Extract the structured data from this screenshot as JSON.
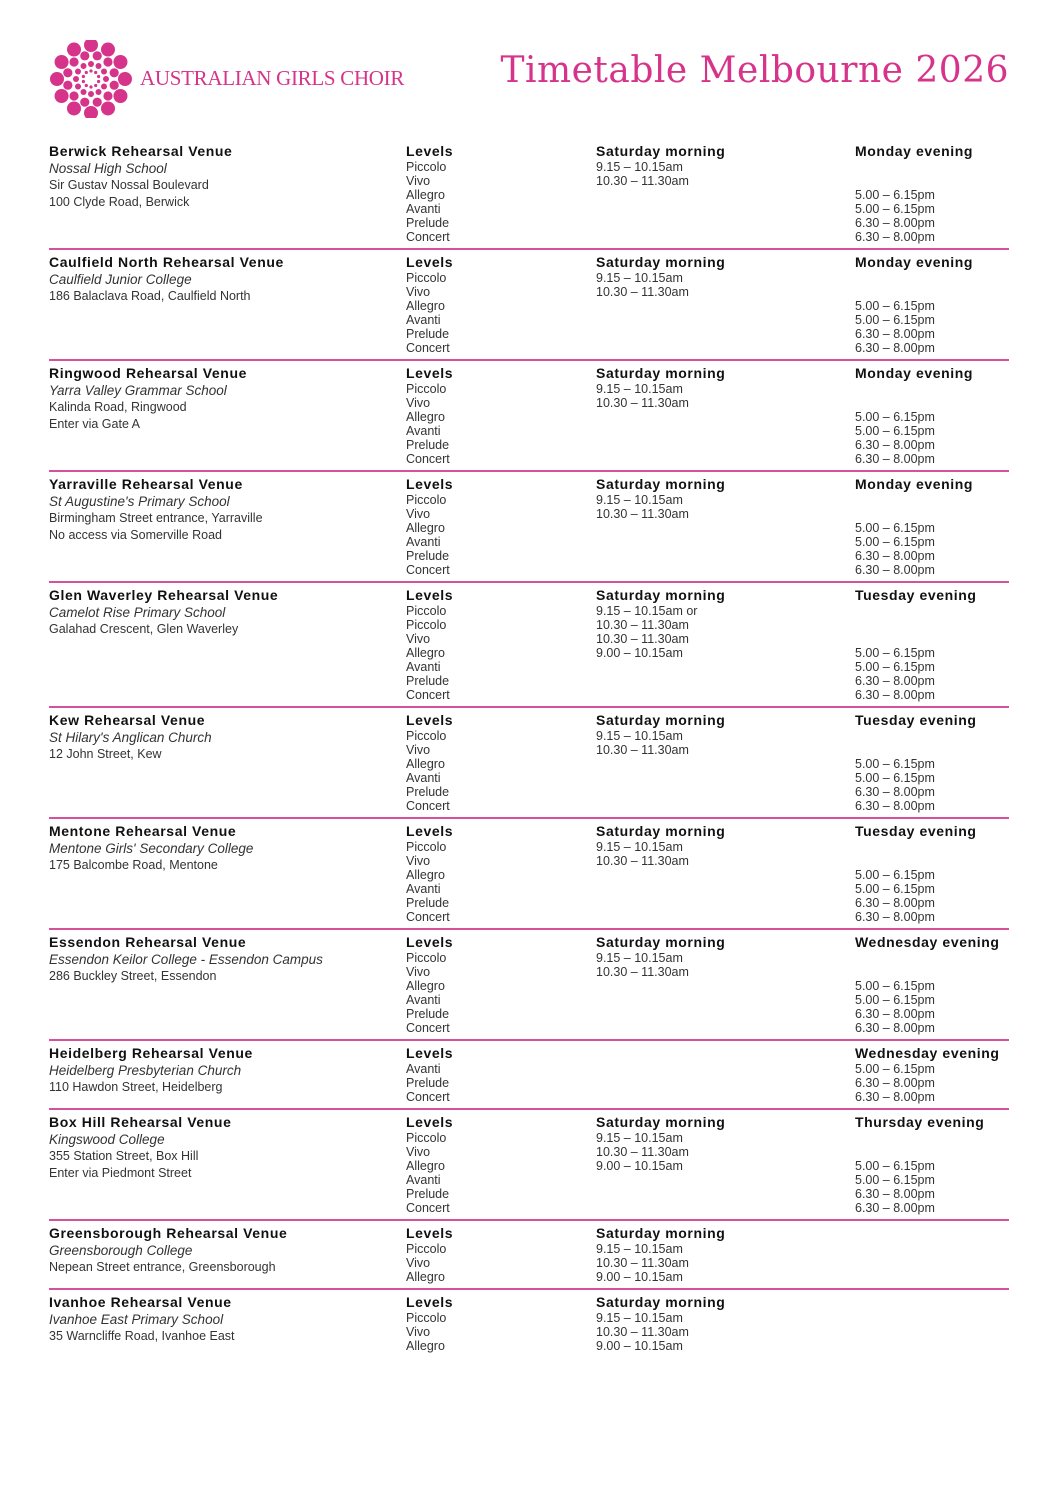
{
  "header": {
    "logo_text": "AUSTRALIAN GIRLS CHOIR",
    "title": "Timetable Melbourne 2026",
    "accent": "#d6338a"
  },
  "venues": [
    {
      "name": "Berwick Rehearsal Venue",
      "school": "Nossal High School",
      "address": [
        "Sir Gustav Nossal Boulevard",
        "100 Clyde Road, Berwick"
      ],
      "levels_label": "Levels",
      "levels": [
        "Piccolo",
        "Vivo",
        "Allegro",
        "Avanti",
        "Prelude",
        "Concert"
      ],
      "saturday_label": "Saturday morning",
      "saturday_times": [
        "9.15 – 10.15am",
        "10.30 – 11.30am"
      ],
      "evening_label": "Monday evening",
      "evening_times": [
        "5.00 – 6.15pm",
        "5.00 – 6.15pm",
        "6.30 – 8.00pm",
        "6.30 – 8.00pm"
      ]
    },
    {
      "name": "Caulfield North Rehearsal Venue",
      "school": "Caulfield Junior College",
      "address": [
        "186 Balaclava Road, Caulfield North"
      ],
      "levels_label": "Levels",
      "levels": [
        "Piccolo",
        "Vivo",
        "Allegro",
        "Avanti",
        "Prelude",
        "Concert"
      ],
      "saturday_label": "Saturday morning",
      "saturday_times": [
        "9.15 – 10.15am",
        "10.30 – 11.30am"
      ],
      "evening_label": "Monday evening",
      "evening_times": [
        "5.00 – 6.15pm",
        "5.00 – 6.15pm",
        "6.30 – 8.00pm",
        "6.30 – 8.00pm"
      ]
    },
    {
      "name": "Ringwood Rehearsal Venue",
      "school": "Yarra Valley Grammar School",
      "address": [
        "Kalinda Road, Ringwood",
        "Enter via Gate A"
      ],
      "levels_label": "Levels",
      "levels": [
        "Piccolo",
        "Vivo",
        "Allegro",
        "Avanti",
        "Prelude",
        "Concert"
      ],
      "saturday_label": "Saturday morning",
      "saturday_times": [
        "9.15 – 10.15am",
        "10.30 – 11.30am"
      ],
      "evening_label": "Monday evening",
      "evening_times": [
        "5.00 – 6.15pm",
        "5.00 – 6.15pm",
        "6.30 – 8.00pm",
        "6.30 – 8.00pm"
      ]
    },
    {
      "name": "Yarraville Rehearsal Venue",
      "school": "St Augustine's Primary School",
      "address": [
        "Birmingham Street entrance, Yarraville",
        "No access via Somerville Road"
      ],
      "levels_label": "Levels",
      "levels": [
        "Piccolo",
        "Vivo",
        "Allegro",
        "Avanti",
        "Prelude",
        "Concert"
      ],
      "saturday_label": "Saturday morning",
      "saturday_times": [
        "9.15 – 10.15am",
        "10.30 – 11.30am"
      ],
      "evening_label": "Monday evening",
      "evening_times": [
        "5.00 – 6.15pm",
        "5.00 – 6.15pm",
        "6.30 – 8.00pm",
        "6.30 – 8.00pm"
      ]
    },
    {
      "name": "Glen Waverley Rehearsal Venue",
      "school": "Camelot Rise Primary School",
      "address": [
        "Galahad Crescent, Glen Waverley"
      ],
      "levels_label": "Levels",
      "levels": [
        "Piccolo",
        "Piccolo",
        "Vivo",
        "Allegro",
        "Avanti",
        "Prelude",
        "Concert"
      ],
      "saturday_label": "Saturday morning",
      "saturday_times": [
        "9.15 – 10.15am or",
        "10.30 – 11.30am",
        "10.30 – 11.30am",
        "9.00 – 10.15am"
      ],
      "evening_label": "Tuesday evening",
      "evening_times": [
        "5.00 – 6.15pm",
        "5.00 – 6.15pm",
        "6.30 – 8.00pm",
        "6.30 – 8.00pm"
      ]
    },
    {
      "name": "Kew Rehearsal Venue",
      "school": "St Hilary's Anglican Church",
      "address": [
        "12 John Street, Kew"
      ],
      "levels_label": "Levels",
      "levels": [
        "Piccolo",
        "Vivo",
        "Allegro",
        "Avanti",
        "Prelude",
        "Concert"
      ],
      "saturday_label": "Saturday morning",
      "saturday_times": [
        "9.15 – 10.15am",
        "10.30 – 11.30am"
      ],
      "evening_label": "Tuesday evening",
      "evening_times": [
        "5.00 – 6.15pm",
        "5.00 – 6.15pm",
        "6.30 – 8.00pm",
        "6.30 – 8.00pm"
      ]
    },
    {
      "name": "Mentone Rehearsal Venue",
      "school": "Mentone Girls' Secondary College",
      "address": [
        "175 Balcombe Road, Mentone"
      ],
      "levels_label": "Levels",
      "levels": [
        "Piccolo",
        "Vivo",
        "Allegro",
        "Avanti",
        "Prelude",
        "Concert"
      ],
      "saturday_label": "Saturday morning",
      "saturday_times": [
        "9.15 – 10.15am",
        "10.30 – 11.30am"
      ],
      "evening_label": "Tuesday evening",
      "evening_times": [
        "5.00 – 6.15pm",
        "5.00 – 6.15pm",
        "6.30 – 8.00pm",
        "6.30 – 8.00pm"
      ]
    },
    {
      "name": "Essendon Rehearsal Venue",
      "school": "Essendon Keilor College - Essendon Campus",
      "address": [
        "286 Buckley Street, Essendon"
      ],
      "levels_label": "Levels",
      "levels": [
        "Piccolo",
        "Vivo",
        "Allegro",
        "Avanti",
        "Prelude",
        "Concert"
      ],
      "saturday_label": "Saturday morning",
      "saturday_times": [
        "9.15 – 10.15am",
        "10.30 – 11.30am"
      ],
      "evening_label": "Wednesday evening",
      "evening_times": [
        "5.00 – 6.15pm",
        "5.00 – 6.15pm",
        "6.30 – 8.00pm",
        "6.30 – 8.00pm"
      ]
    },
    {
      "name": "Heidelberg Rehearsal Venue",
      "school": "Heidelberg Presbyterian Church",
      "address": [
        "110 Hawdon Street, Heidelberg"
      ],
      "levels_label": "Levels",
      "levels": [
        "Avanti",
        "Prelude",
        "Concert"
      ],
      "saturday_label": "",
      "saturday_times": [],
      "evening_label": "Wednesday evening",
      "evening_times": [
        "5.00 – 6.15pm",
        "6.30 – 8.00pm",
        "6.30 – 8.00pm"
      ]
    },
    {
      "name": "Box Hill Rehearsal Venue",
      "school": "Kingswood College",
      "address": [
        "355 Station Street, Box Hill",
        "Enter via Piedmont Street"
      ],
      "levels_label": "Levels",
      "levels": [
        "Piccolo",
        "Vivo",
        "Allegro",
        "Avanti",
        "Prelude",
        "Concert"
      ],
      "saturday_label": "Saturday morning",
      "saturday_times": [
        "9.15 – 10.15am",
        "10.30 – 11.30am",
        "9.00 – 10.15am"
      ],
      "evening_label": "Thursday evening",
      "evening_times": [
        "5.00 – 6.15pm",
        "5.00 – 6.15pm",
        "6.30 – 8.00pm",
        "6.30 – 8.00pm"
      ]
    },
    {
      "name": "Greensborough Rehearsal Venue",
      "school": "Greensborough College",
      "address": [
        "Nepean Street entrance, Greensborough"
      ],
      "levels_label": "Levels",
      "levels": [
        "Piccolo",
        "Vivo",
        "Allegro"
      ],
      "saturday_label": "Saturday morning",
      "saturday_times": [
        "9.15 – 10.15am",
        "10.30 – 11.30am",
        "9.00 – 10.15am"
      ],
      "evening_label": "",
      "evening_times": []
    },
    {
      "name": "Ivanhoe Rehearsal Venue",
      "school": "Ivanhoe East Primary School",
      "address": [
        "35 Warncliffe Road, Ivanhoe East"
      ],
      "levels_label": "Levels",
      "levels": [
        "Piccolo",
        "Vivo",
        "Allegro"
      ],
      "saturday_label": "Saturday morning",
      "saturday_times": [
        "9.15 – 10.15am",
        "10.30 – 11.30am",
        "9.00 – 10.15am"
      ],
      "evening_label": "",
      "evening_times": []
    }
  ]
}
